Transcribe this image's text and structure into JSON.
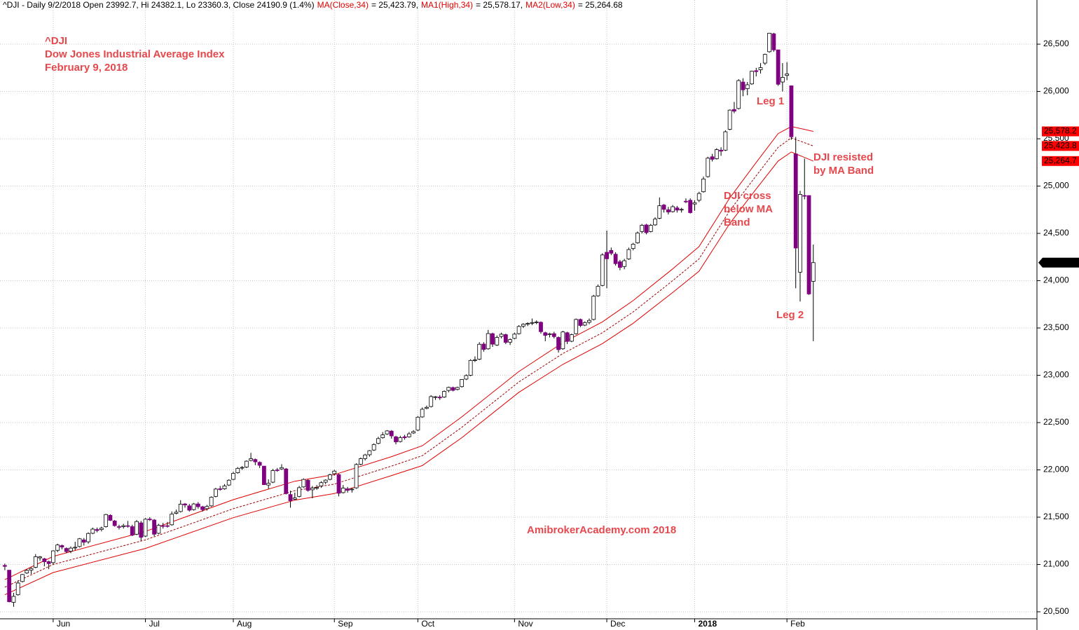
{
  "chart_data": {
    "type": "candlestick",
    "header": [
      {
        "text": "^DJI - Daily 9/2/2018 Open 23992.7, Hi 24382.1, Lo 23360.3, Close 24190.9 (1.4%)",
        "color": "#000000"
      },
      {
        "text": "MA(Close,34)",
        "color": "#e00000"
      },
      {
        "text": "= 25,423.79,",
        "color": "#000000"
      },
      {
        "text": "MA1(High,34)",
        "color": "#e00000"
      },
      {
        "text": "= 25,578.17,",
        "color": "#000000"
      },
      {
        "text": "MA2(Low,34)",
        "color": "#e00000"
      },
      {
        "text": "= 25,264.68",
        "color": "#000000"
      }
    ],
    "annotations": [
      "^DJI",
      "Dow Jones Industrial Average Index",
      "February 9, 2018",
      "Leg 1",
      "DJI resisted",
      "by MA Band",
      "DJI cross",
      "below MA",
      "Band",
      "Leg 2",
      "AmibrokerAcademy.com 2018"
    ],
    "up_color": "#ffffff",
    "down_color": "#800080",
    "xlim": [
      -1.1,
      234.9
    ],
    "xticks": [
      {
        "value": 11,
        "label": "Jun"
      },
      {
        "value": 32,
        "label": "Jul"
      },
      {
        "value": 52,
        "label": "Aug"
      },
      {
        "value": 75,
        "label": "Sep"
      },
      {
        "value": 94,
        "label": "Oct"
      },
      {
        "value": 116,
        "label": "Nov"
      },
      {
        "value": 137,
        "label": "Dec"
      },
      {
        "value": 157,
        "label": "2018"
      },
      {
        "value": 178,
        "label": "Feb"
      }
    ],
    "ylim": [
      20426,
      26967
    ],
    "yticks": [
      {
        "value": 26500,
        "label": "26,500"
      },
      {
        "value": 26000,
        "label": "26,000"
      },
      {
        "value": 25500,
        "label": "25,500"
      },
      {
        "value": 25000,
        "label": "25,000"
      },
      {
        "value": 24500,
        "label": "24,500"
      },
      {
        "value": 24000,
        "label": "24,000"
      },
      {
        "value": 23500,
        "label": "23,500"
      },
      {
        "value": 23000,
        "label": "23,000"
      },
      {
        "value": 22500,
        "label": "22,500"
      },
      {
        "value": 22000,
        "label": "22,000"
      },
      {
        "value": 21500,
        "label": "21,500"
      },
      {
        "value": 21000,
        "label": "21,000"
      },
      {
        "value": 20500,
        "label": "20,500"
      }
    ],
    "grid": true,
    "close_flag": {
      "value": 24190.9,
      "label": "24,190.9"
    },
    "candles": [
      [
        20990,
        21010,
        20940,
        20980
      ],
      [
        20940,
        20940,
        20600,
        20606
      ],
      [
        20600,
        20700,
        20553,
        20663
      ],
      [
        20680,
        20830,
        20670,
        20804
      ],
      [
        20820,
        20900,
        20810,
        20894
      ],
      [
        20910,
        20950,
        20900,
        20937
      ],
      [
        20940,
        20970,
        20900,
        20958
      ],
      [
        20970,
        21110,
        20960,
        21082
      ],
      [
        21070,
        21090,
        21040,
        21080
      ],
      [
        21060,
        21070,
        20980,
        21029
      ],
      [
        21030,
        21040,
        20950,
        21009
      ],
      [
        21020,
        21150,
        21000,
        21144
      ],
      [
        21150,
        21220,
        21130,
        21206
      ],
      [
        21200,
        21210,
        21160,
        21184
      ],
      [
        21170,
        21180,
        21120,
        21136
      ],
      [
        21140,
        21190,
        21120,
        21173
      ],
      [
        21180,
        21240,
        21150,
        21182
      ],
      [
        21190,
        21280,
        21180,
        21272
      ],
      [
        21260,
        21280,
        21200,
        21235
      ],
      [
        21240,
        21340,
        21220,
        21328
      ],
      [
        21330,
        21390,
        21320,
        21374
      ],
      [
        21370,
        21390,
        21340,
        21359
      ],
      [
        21370,
        21400,
        21350,
        21384
      ],
      [
        21400,
        21535,
        21390,
        21528
      ],
      [
        21520,
        21530,
        21460,
        21467
      ],
      [
        21460,
        21470,
        21400,
        21411
      ],
      [
        21400,
        21420,
        21370,
        21397
      ],
      [
        21400,
        21430,
        21380,
        21410
      ],
      [
        21410,
        21460,
        21390,
        21409
      ],
      [
        21400,
        21420,
        21300,
        21310
      ],
      [
        21320,
        21470,
        21310,
        21454
      ],
      [
        21440,
        21460,
        21250,
        21287
      ],
      [
        21300,
        21490,
        21290,
        21479
      ],
      [
        21480,
        21500,
        21460,
        21478
      ],
      [
        21470,
        21480,
        21300,
        21320
      ],
      [
        21330,
        21430,
        21320,
        21414
      ],
      [
        21410,
        21440,
        21380,
        21408
      ],
      [
        21410,
        21450,
        21390,
        21409
      ],
      [
        21420,
        21560,
        21410,
        21532
      ],
      [
        21540,
        21580,
        21530,
        21553
      ],
      [
        21560,
        21680,
        21550,
        21638
      ],
      [
        21640,
        21650,
        21600,
        21629
      ],
      [
        21620,
        21640,
        21560,
        21574
      ],
      [
        21580,
        21650,
        21570,
        21640
      ],
      [
        21640,
        21660,
        21590,
        21611
      ],
      [
        21610,
        21620,
        21560,
        21580
      ],
      [
        21590,
        21630,
        21570,
        21613
      ],
      [
        21620,
        21720,
        21610,
        21711
      ],
      [
        21720,
        21810,
        21710,
        21797
      ],
      [
        21800,
        21830,
        21780,
        21796
      ],
      [
        21800,
        21850,
        21790,
        21830
      ],
      [
        21840,
        21900,
        21830,
        21891
      ],
      [
        21900,
        21980,
        21890,
        21963
      ],
      [
        21970,
        22030,
        21960,
        22016
      ],
      [
        22020,
        22040,
        22000,
        22026
      ],
      [
        22030,
        22100,
        22020,
        22092
      ],
      [
        22100,
        22180,
        22090,
        22118
      ],
      [
        22110,
        22120,
        22050,
        22085
      ],
      [
        22080,
        22090,
        22020,
        22048
      ],
      [
        22040,
        22040,
        21840,
        21844
      ],
      [
        21840,
        21900,
        21800,
        21858
      ],
      [
        21870,
        22010,
        21860,
        21993
      ],
      [
        22000,
        22020,
        21980,
        21998
      ],
      [
        22010,
        22060,
        22000,
        22024
      ],
      [
        22010,
        22020,
        21740,
        21750
      ],
      [
        21740,
        21780,
        21600,
        21674
      ],
      [
        21690,
        21760,
        21680,
        21703
      ],
      [
        21720,
        21830,
        21710,
        21812
      ],
      [
        21820,
        21910,
        21810,
        21899
      ],
      [
        21890,
        21900,
        21770,
        21783
      ],
      [
        21790,
        21830,
        21700,
        21808
      ],
      [
        21810,
        21840,
        21790,
        21813
      ],
      [
        21830,
        21880,
        21810,
        21865
      ],
      [
        21870,
        21900,
        21850,
        21892
      ],
      [
        21900,
        21960,
        21890,
        21948
      ],
      [
        21960,
        22000,
        21940,
        21987
      ],
      [
        21950,
        21960,
        21720,
        21753
      ],
      [
        21760,
        21840,
        21750,
        21807
      ],
      [
        21800,
        21820,
        21760,
        21784
      ],
      [
        21790,
        21810,
        21760,
        21797
      ],
      [
        21810,
        22070,
        21800,
        22057
      ],
      [
        22060,
        22130,
        22050,
        22118
      ],
      [
        22120,
        22170,
        22100,
        22158
      ],
      [
        22160,
        22210,
        22140,
        22203
      ],
      [
        22210,
        22280,
        22200,
        22268
      ],
      [
        22280,
        22350,
        22270,
        22331
      ],
      [
        22340,
        22400,
        22330,
        22370
      ],
      [
        22380,
        22420,
        22370,
        22412
      ],
      [
        22410,
        22420,
        22330,
        22359
      ],
      [
        22350,
        22360,
        22270,
        22296
      ],
      [
        22300,
        22360,
        22290,
        22341
      ],
      [
        22350,
        22370,
        22320,
        22340
      ],
      [
        22350,
        22400,
        22340,
        22381
      ],
      [
        22390,
        22420,
        22380,
        22405
      ],
      [
        22420,
        22570,
        22410,
        22557
      ],
      [
        22560,
        22660,
        22550,
        22641
      ],
      [
        22650,
        22680,
        22640,
        22661
      ],
      [
        22670,
        22790,
        22660,
        22775
      ],
      [
        22770,
        22780,
        22740,
        22773
      ],
      [
        22770,
        22790,
        22740,
        22761
      ],
      [
        22770,
        22840,
        22760,
        22830
      ],
      [
        22840,
        22880,
        22820,
        22872
      ],
      [
        22870,
        22880,
        22830,
        22841
      ],
      [
        22850,
        22880,
        22840,
        22871
      ],
      [
        22880,
        22960,
        22870,
        22956
      ],
      [
        22960,
        23010,
        22950,
        22997
      ],
      [
        23000,
        23170,
        22990,
        23157
      ],
      [
        23160,
        23200,
        23140,
        23163
      ],
      [
        23170,
        23350,
        23160,
        23328
      ],
      [
        23330,
        23350,
        23250,
        23273
      ],
      [
        23280,
        23480,
        23270,
        23441
      ],
      [
        23440,
        23450,
        23300,
        23329
      ],
      [
        23320,
        23420,
        23310,
        23400
      ],
      [
        23410,
        23450,
        23390,
        23434
      ],
      [
        23430,
        23440,
        23330,
        23348
      ],
      [
        23350,
        23390,
        23320,
        23377
      ],
      [
        23390,
        23450,
        23380,
        23435
      ],
      [
        23440,
        23530,
        23430,
        23516
      ],
      [
        23520,
        23550,
        23500,
        23539
      ],
      [
        23540,
        23560,
        23520,
        23548
      ],
      [
        23550,
        23600,
        23530,
        23557
      ],
      [
        23560,
        23580,
        23540,
        23563
      ],
      [
        23560,
        23570,
        23440,
        23461
      ],
      [
        23450,
        23460,
        23360,
        23422
      ],
      [
        23430,
        23450,
        23400,
        23439
      ],
      [
        23440,
        23460,
        23390,
        23409
      ],
      [
        23400,
        23410,
        23240,
        23271
      ],
      [
        23280,
        23470,
        23270,
        23458
      ],
      [
        23450,
        23460,
        23330,
        23358
      ],
      [
        23360,
        23440,
        23350,
        23430
      ],
      [
        23440,
        23600,
        23430,
        23590
      ],
      [
        23590,
        23600,
        23510,
        23526
      ],
      [
        23530,
        23570,
        23520,
        23557
      ],
      [
        23560,
        23600,
        23540,
        23580
      ],
      [
        23590,
        23850,
        23580,
        23836
      ],
      [
        23840,
        23960,
        23830,
        23940
      ],
      [
        23950,
        24290,
        23940,
        24272
      ],
      [
        24300,
        24530,
        23920,
        24231
      ],
      [
        24320,
        24350,
        24270,
        24290
      ],
      [
        24280,
        24300,
        24160,
        24180
      ],
      [
        24200,
        24220,
        24110,
        24140
      ],
      [
        24150,
        24230,
        24120,
        24211
      ],
      [
        24230,
        24350,
        24220,
        24329
      ],
      [
        24340,
        24400,
        24320,
        24386
      ],
      [
        24400,
        24520,
        24390,
        24504
      ],
      [
        24520,
        24600,
        24500,
        24585
      ],
      [
        24590,
        24600,
        24490,
        24508
      ],
      [
        24520,
        24600,
        24510,
        24585
      ],
      [
        24590,
        24670,
        24580,
        24651
      ],
      [
        24660,
        24880,
        24650,
        24792
      ],
      [
        24800,
        24810,
        24720,
        24754
      ],
      [
        24750,
        24780,
        24700,
        24726
      ],
      [
        24730,
        24800,
        24720,
        24782
      ],
      [
        24770,
        24790,
        24720,
        24746
      ],
      [
        24750,
        24770,
        24720,
        24754
      ],
      [
        24840,
        24870,
        24820,
        24837
      ],
      [
        24850,
        24870,
        24710,
        24719
      ],
      [
        24810,
        24850,
        24740,
        24824
      ],
      [
        24850,
        24940,
        24830,
        24922
      ],
      [
        24940,
        25100,
        24930,
        25075
      ],
      [
        25100,
        25310,
        25090,
        25295
      ],
      [
        25310,
        25340,
        25260,
        25283
      ],
      [
        25290,
        25400,
        25280,
        25385
      ],
      [
        25380,
        25410,
        25320,
        25369
      ],
      [
        25380,
        25590,
        25370,
        25574
      ],
      [
        25600,
        25810,
        25590,
        25803
      ],
      [
        25810,
        25890,
        25770,
        25792
      ],
      [
        25820,
        26130,
        25810,
        26115
      ],
      [
        26100,
        26140,
        25950,
        26017
      ],
      [
        26030,
        26100,
        25960,
        26071
      ],
      [
        26080,
        26220,
        26070,
        26214
      ],
      [
        26220,
        26250,
        26160,
        26210
      ],
      [
        26230,
        26300,
        26190,
        26252
      ],
      [
        26300,
        26400,
        26280,
        26392
      ],
      [
        26420,
        26620,
        26410,
        26616
      ],
      [
        26610,
        26620,
        26420,
        26439
      ],
      [
        26440,
        26440,
        26060,
        26076
      ],
      [
        26100,
        26300,
        26000,
        26149
      ],
      [
        26170,
        26310,
        26120,
        26186
      ],
      [
        26060,
        26060,
        25490,
        25521
      ],
      [
        25340,
        25520,
        23920,
        24345
      ],
      [
        24090,
        24950,
        23780,
        24912
      ],
      [
        24900,
        25290,
        24860,
        24893
      ],
      [
        24900,
        24900,
        23850,
        23860
      ],
      [
        23992.7,
        24382.1,
        23360.3,
        24190.9
      ]
    ],
    "ma_x": [
      0,
      11,
      32,
      52,
      66,
      75,
      88,
      95,
      104,
      117,
      127,
      136,
      143,
      152,
      158,
      165,
      171,
      176,
      179,
      184
    ],
    "series": [
      {
        "name": "MA1(High,34)",
        "color": "#e00000",
        "dashed": false,
        "flag_label": "25,578.2",
        "values": [
          20840,
          21085,
          21350,
          21685,
          21880,
          21950,
          22140,
          22255,
          22560,
          23040,
          23345,
          23565,
          23790,
          24125,
          24360,
          24875,
          25250,
          25555,
          25630,
          25578.17
        ]
      },
      {
        "name": "MA(Close,34)",
        "color": "#a00000",
        "dashed": true,
        "flag_label": "25,423.8",
        "values": [
          20760,
          21000,
          21260,
          21590,
          21780,
          21850,
          22040,
          22150,
          22450,
          22930,
          23230,
          23450,
          23670,
          24000,
          24230,
          24740,
          25110,
          25410,
          25510,
          25423.79
        ]
      },
      {
        "name": "MA2(Low,34)",
        "color": "#e00000",
        "dashed": false,
        "flag_label": "25,264.7",
        "values": [
          20680,
          20915,
          21170,
          21495,
          21680,
          21750,
          21940,
          22045,
          22340,
          22820,
          23115,
          23335,
          23550,
          23875,
          24100,
          24605,
          24970,
          25265,
          25360,
          25264.68
        ]
      }
    ]
  }
}
